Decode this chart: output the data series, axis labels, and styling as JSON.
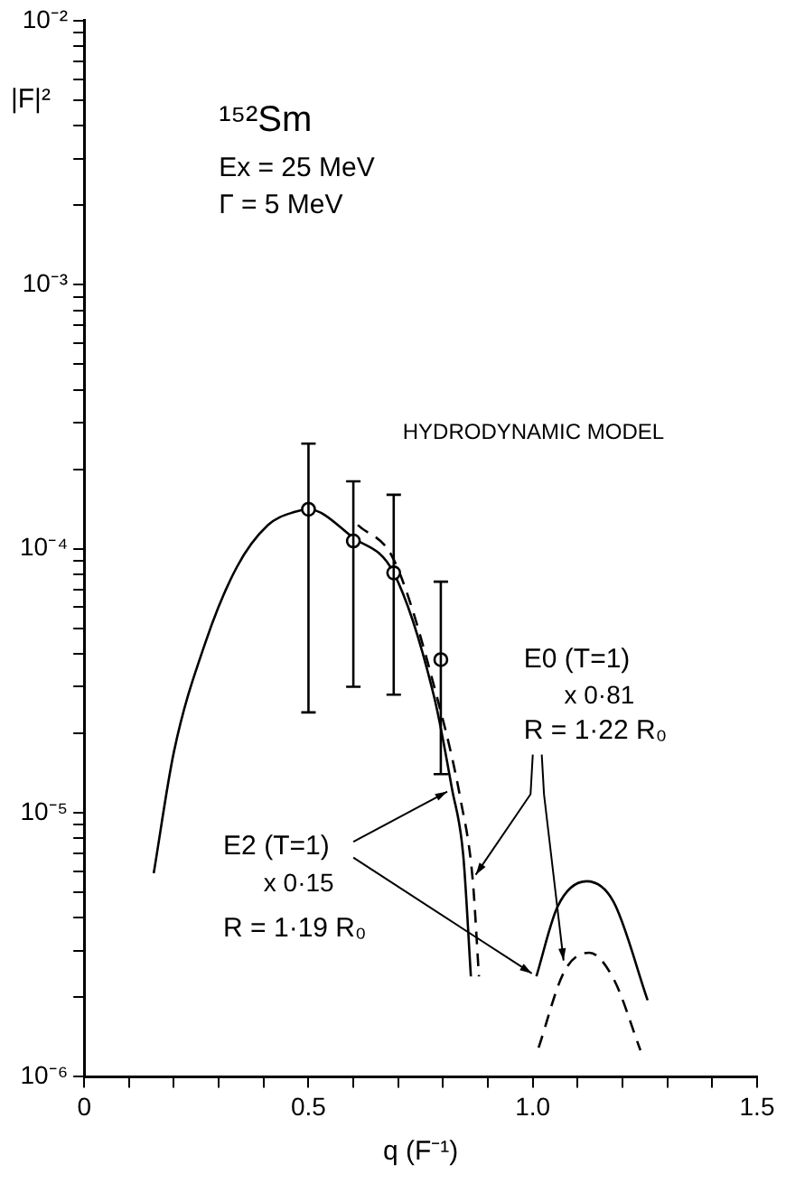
{
  "chart_data": {
    "type": "line",
    "xlabel": "q (F⁻¹)",
    "ylabel": "|F|²",
    "log": "y",
    "grid": false,
    "legend": false,
    "xlim": [
      0,
      1.5
    ],
    "ylim": [
      1e-06,
      0.01
    ],
    "xticks": [
      0,
      {
        "value": 0.1,
        "label": null
      },
      {
        "value": 0.2,
        "label": null
      },
      {
        "value": 0.3,
        "label": null
      },
      {
        "value": 0.4,
        "label": null
      },
      0.5,
      {
        "value": 0.6,
        "label": null
      },
      {
        "value": 0.7,
        "label": null
      },
      {
        "value": 0.8,
        "label": null
      },
      {
        "value": 0.9,
        "label": null
      },
      {
        "value": 1,
        "label": "1.0"
      },
      {
        "value": 1.1,
        "label": null
      },
      {
        "value": 1.2,
        "label": null
      },
      {
        "value": 1.3,
        "label": null
      },
      {
        "value": 1.4,
        "label": null
      },
      1.5
    ],
    "yticks": [
      {
        "value": 1e-06,
        "label": "10⁻⁶"
      },
      {
        "value": 2e-06,
        "label": null
      },
      {
        "value": 3e-06,
        "label": null
      },
      {
        "value": 4e-06,
        "label": null
      },
      {
        "value": 5e-06,
        "label": null
      },
      {
        "value": 6e-06,
        "label": null
      },
      {
        "value": 7e-06,
        "label": null
      },
      {
        "value": 8e-06,
        "label": null
      },
      {
        "value": 9e-06,
        "label": null
      },
      {
        "value": 1e-05,
        "label": "10⁻⁵"
      },
      {
        "value": 2e-05,
        "label": null
      },
      {
        "value": 3e-05,
        "label": null
      },
      {
        "value": 4e-05,
        "label": null
      },
      {
        "value": 5e-05,
        "label": null
      },
      {
        "value": 6e-05,
        "label": null
      },
      {
        "value": 7e-05,
        "label": null
      },
      {
        "value": 8e-05,
        "label": null
      },
      {
        "value": 9e-05,
        "label": null
      },
      {
        "value": 0.0001,
        "label": "10⁻⁴"
      },
      {
        "value": 0.0002,
        "label": null
      },
      {
        "value": 0.0003,
        "label": null
      },
      {
        "value": 0.0004,
        "label": null
      },
      {
        "value": 0.0005,
        "label": null
      },
      {
        "value": 0.0006,
        "label": null
      },
      {
        "value": 0.0007,
        "label": null
      },
      {
        "value": 0.0008,
        "label": null
      },
      {
        "value": 0.0009,
        "label": null
      },
      {
        "value": 0.001,
        "label": "10⁻³"
      },
      {
        "value": 0.002,
        "label": null
      },
      {
        "value": 0.003,
        "label": null
      },
      {
        "value": 0.004,
        "label": null
      },
      {
        "value": 0.005,
        "label": null
      },
      {
        "value": 0.006,
        "label": null
      },
      {
        "value": 0.007,
        "label": null
      },
      {
        "value": 0.008,
        "label": null
      },
      {
        "value": 0.009,
        "label": null
      },
      {
        "value": 0.01,
        "label": "10⁻²"
      }
    ],
    "series": [
      {
        "type": "scatter",
        "marker": "circle",
        "color": "#000000",
        "x": [
          0.5,
          0.6,
          0.69,
          0.795
        ],
        "values": [
          0.000141,
          0.000107,
          8.1e-05,
          3.8e-05
        ],
        "errors": [
          [
            2.4e-05,
            0.00025
          ],
          [
            3e-05,
            0.00018
          ],
          [
            2.8e-05,
            0.00016
          ],
          [
            1.4e-05,
            7.5e-05
          ]
        ]
      },
      {
        "marker": "none",
        "line_style": "solid",
        "color": "#000000",
        "x": [
          0.155,
          0.2,
          0.27,
          0.34,
          0.41,
          0.47,
          0.5,
          0.6,
          0.69,
          0.78,
          0.82,
          0.845,
          0.862,
          0.93,
          1.008,
          1.055,
          1.12,
          1.18,
          1.256
        ],
        "values": [
          5.9e-06,
          1.7e-05,
          4.4e-05,
          8.5e-05,
          0.000123,
          0.000138,
          0.000141,
          0.00011,
          8.1e-05,
          2.75e-05,
          1.23e-05,
          6.9e-06,
          2.4e-06,
          null,
          2.4e-06,
          4.4e-06,
          5.5e-06,
          4.6e-06,
          1.95e-06
        ]
      },
      {
        "marker": "none",
        "line_style": "dashed",
        "color": "#000000",
        "x": [
          0.61,
          0.69,
          0.79,
          0.84,
          0.866,
          0.88,
          0.95,
          1.013,
          1.07,
          1.126,
          1.18,
          1.24
        ],
        "values": [
          0.000123,
          9.1e-05,
          2.6e-05,
          1.1e-05,
          5.6e-06,
          2.4e-06,
          null,
          1.29e-06,
          2.5e-06,
          2.95e-06,
          2.35e-06,
          1.26e-06
        ]
      }
    ],
    "annotations": [
      "¹⁵²Sm",
      "Ex = 25 MeV",
      "Γ = 5 MeV",
      "HYDRODYNAMIC MODEL",
      "E0 (T=1)",
      "x 0·81",
      {
        "text": "R = 1·22 R₀",
        "x": 0.866,
        "y": 5.6e-06
      },
      {
        "text": "E2 (T=1)",
        "x": 0.82,
        "y": 1.23e-05
      },
      {
        "text": "x 0·15",
        "x": 1.008,
        "y": 2.4e-06
      },
      "R = 1·19 R₀"
    ]
  }
}
